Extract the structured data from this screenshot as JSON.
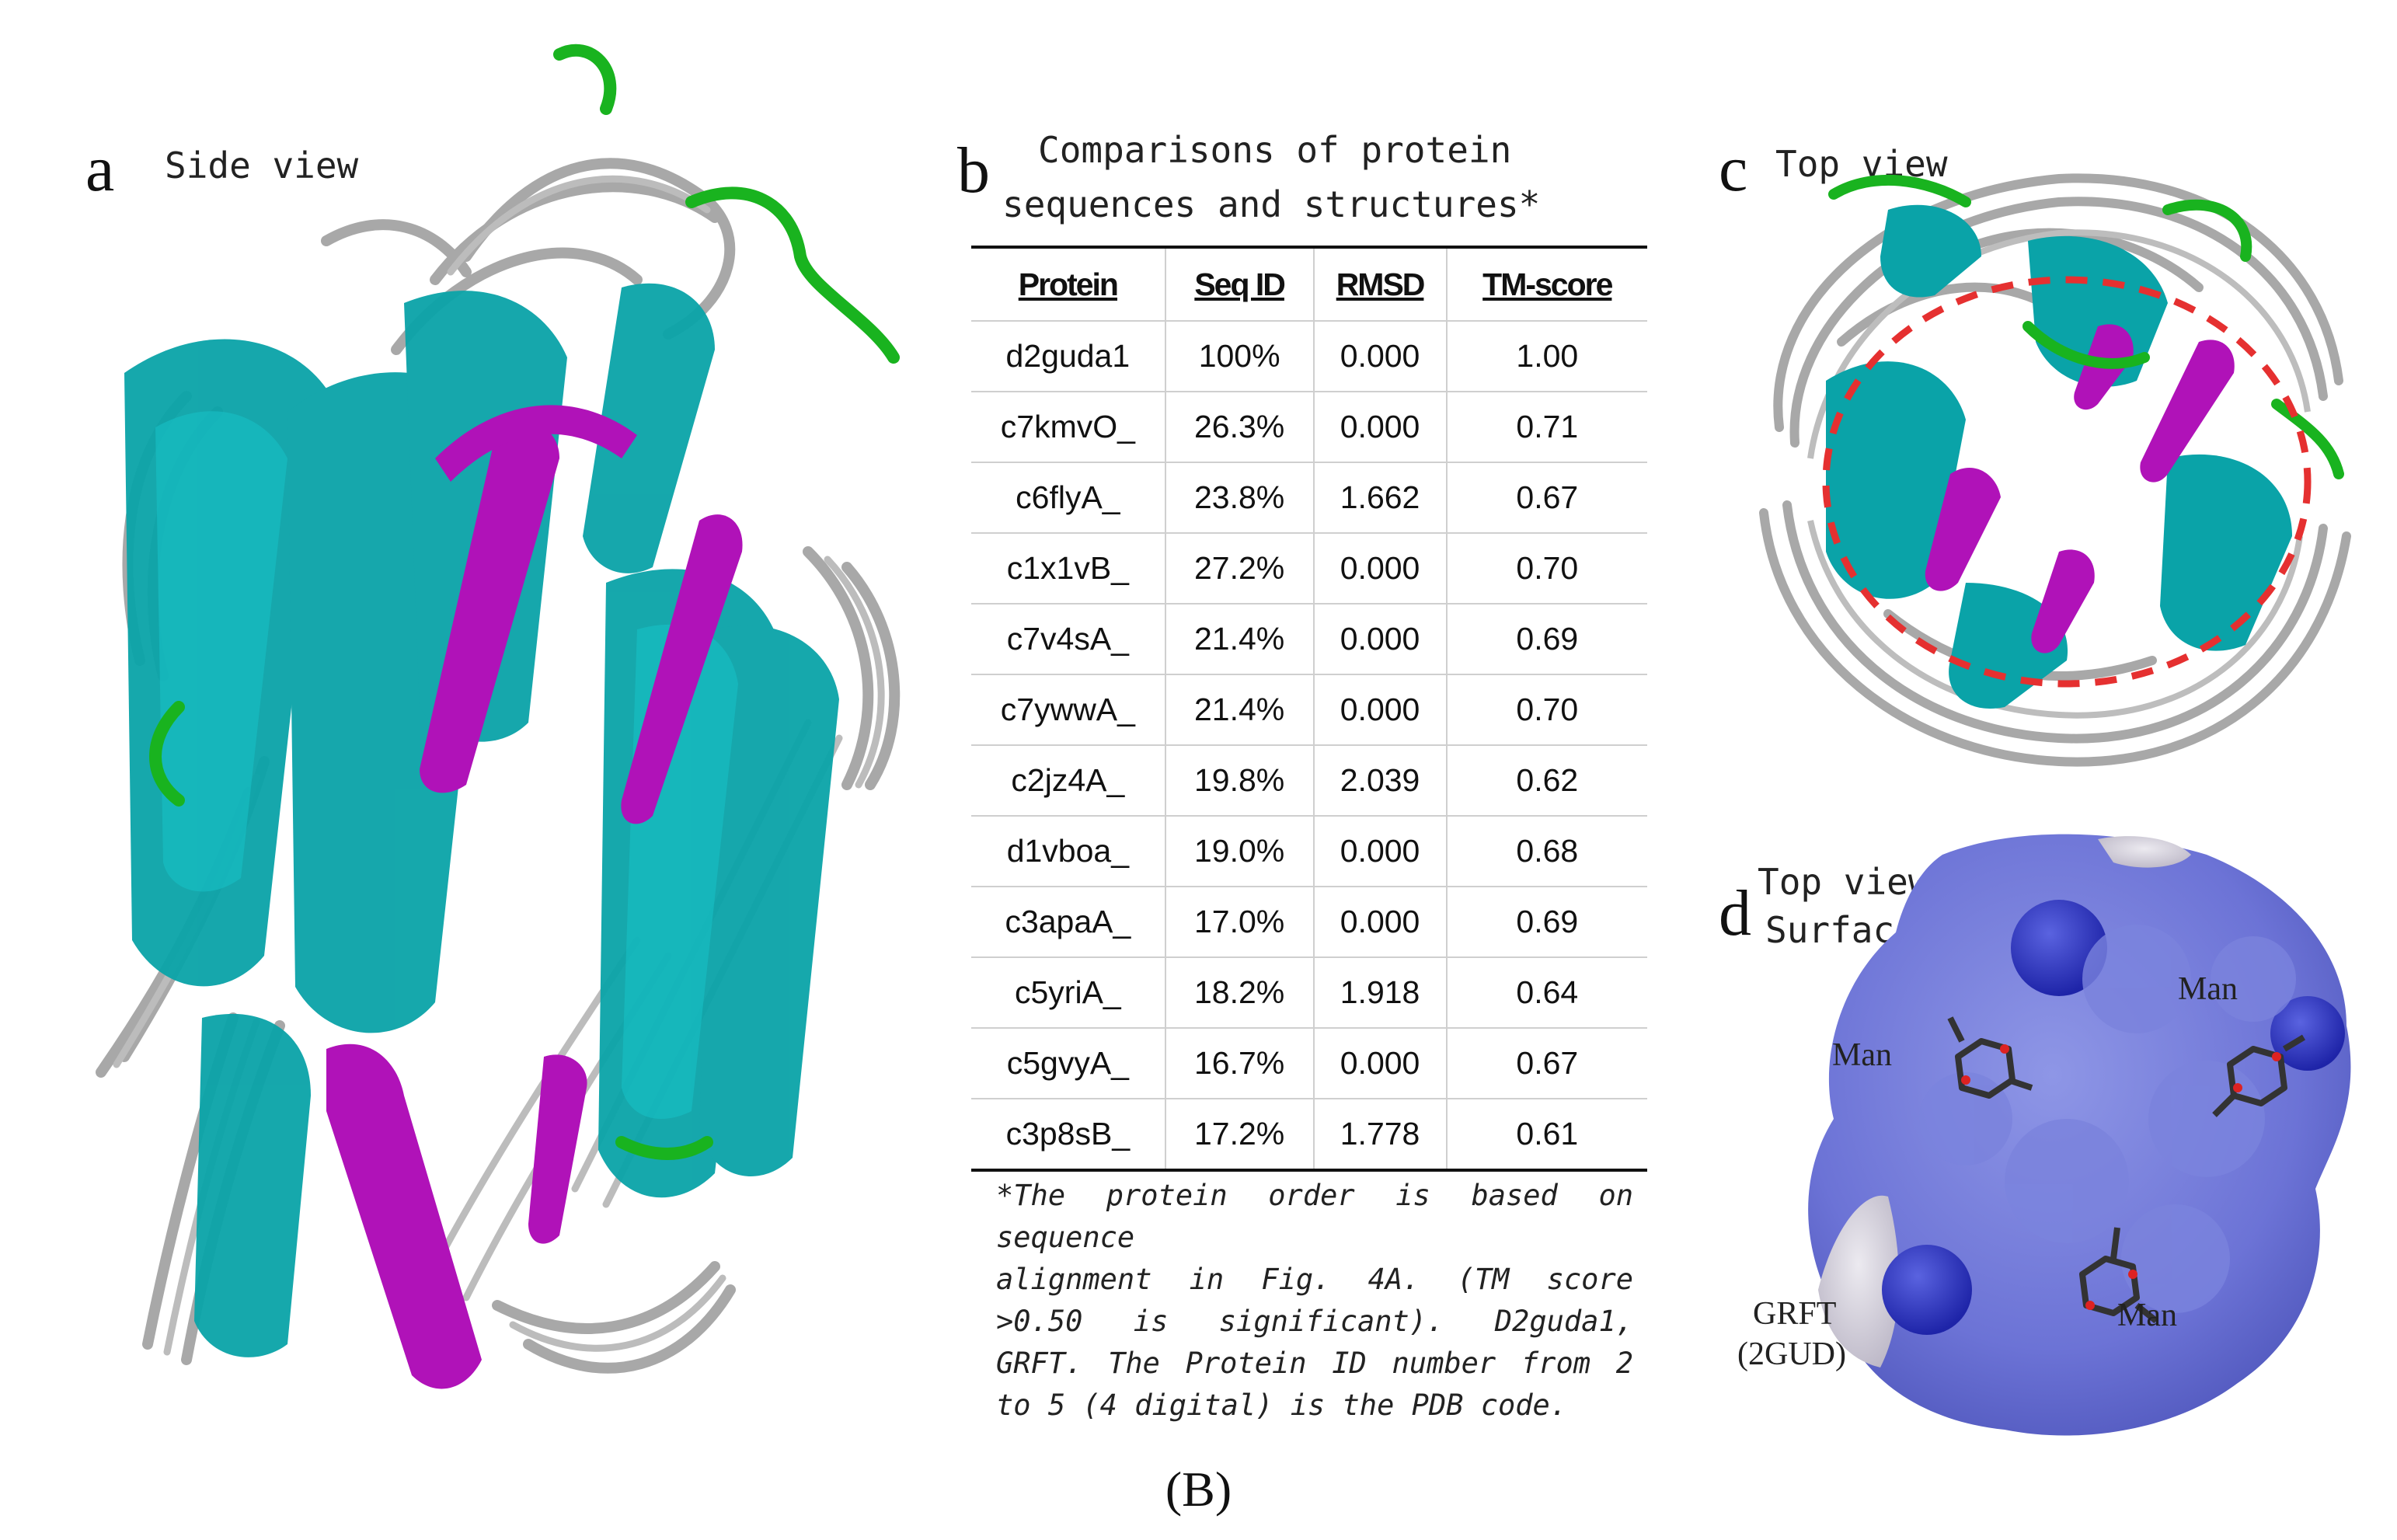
{
  "panels": {
    "a": {
      "label": "a",
      "title": "Side view"
    },
    "b": {
      "label": "b",
      "title_line1": "Comparisons of protein",
      "title_line2": "sequences and structures*"
    },
    "c": {
      "label": "c",
      "title": "Top view"
    },
    "d": {
      "label": "d",
      "title_line1": "Top view",
      "title_line2": "Surface",
      "annotations": {
        "man1": "Man",
        "man2": "Man",
        "man3": "Man",
        "grft_line1": "GRFT",
        "grft_line2": "(2GUD)"
      }
    }
  },
  "table": {
    "headers": [
      "Protein",
      "Seq ID",
      "RMSD",
      "TM-score"
    ],
    "rows": [
      [
        "d2guda1",
        "100%",
        "0.000",
        "1.00"
      ],
      [
        "c7kmvO_",
        "26.3%",
        "0.000",
        "0.71"
      ],
      [
        "c6flyA_",
        "23.8%",
        "1.662",
        "0.67"
      ],
      [
        "c1x1vB_",
        "27.2%",
        "0.000",
        "0.70"
      ],
      [
        "c7v4sA_",
        "21.4%",
        "0.000",
        "0.69"
      ],
      [
        "c7ywwA_",
        "21.4%",
        "0.000",
        "0.70"
      ],
      [
        "c2jz4A_",
        "19.8%",
        "2.039",
        "0.62"
      ],
      [
        "d1vboa_",
        "19.0%",
        "0.000",
        "0.68"
      ],
      [
        "c3apaA_",
        "17.0%",
        "0.000",
        "0.69"
      ],
      [
        "c5yriA_",
        "18.2%",
        "1.918",
        "0.64"
      ],
      [
        "c5gvyA_",
        "16.7%",
        "0.000",
        "0.67"
      ],
      [
        "c3p8sB_",
        "17.2%",
        "1.778",
        "0.61"
      ]
    ]
  },
  "footnote": {
    "line1": "*The protein order is based on sequence",
    "line2": "alignment in Fig. 4A. (TM score >0.50 is significant). D2guda1, GRFT. The Protein ID number from 2 to 5 (4 digital) is the PDB code."
  },
  "caption": "(B)",
  "colors": {
    "helix_teal": "#0aa3a8",
    "loop_gray": "#a6a6a6",
    "strand_magenta": "#b012b8",
    "turn_green": "#19b31f",
    "surface_blue": "#6c73d6",
    "circle_red": "#e53030"
  }
}
